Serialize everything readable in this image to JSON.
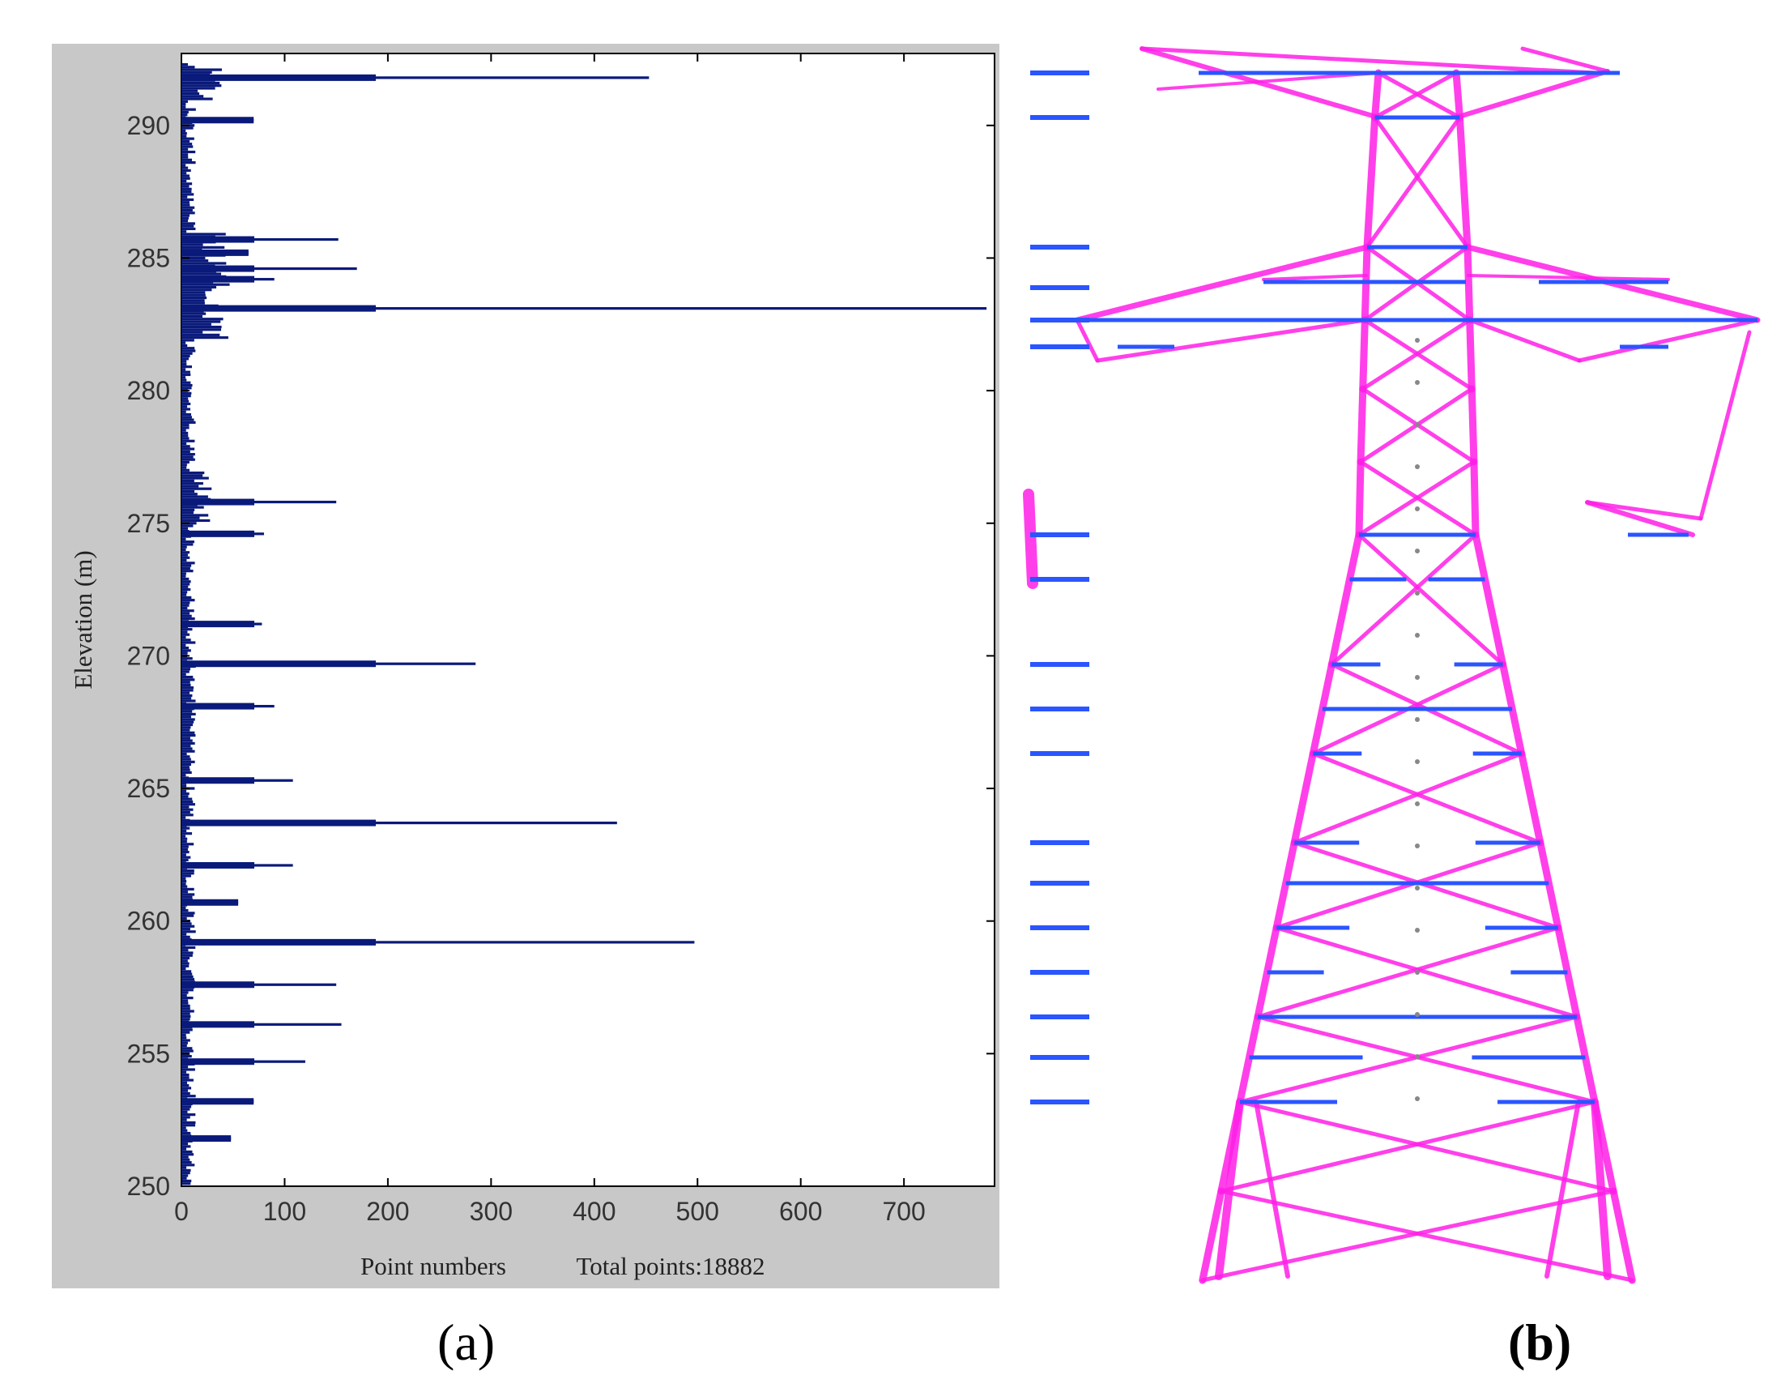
{
  "chart_data": {
    "type": "bar",
    "orientation": "horizontal",
    "ylabel": "Elevation (m)",
    "xlabel": "Point numbers",
    "annotation": "Total points:18882",
    "xlim": [
      0,
      780
    ],
    "ylim": [
      250,
      292.5
    ],
    "xticks": [
      0,
      100,
      200,
      300,
      400,
      500,
      600,
      700
    ],
    "yticks": [
      250,
      255,
      260,
      265,
      270,
      275,
      280,
      285,
      290
    ],
    "grid": false,
    "bar_color": "#0a1a7a",
    "peaks": [
      {
        "elevation": 291.8,
        "count": 453
      },
      {
        "elevation": 290.2,
        "count": 70
      },
      {
        "elevation": 285.7,
        "count": 152
      },
      {
        "elevation": 285.2,
        "count": 65
      },
      {
        "elevation": 284.6,
        "count": 170
      },
      {
        "elevation": 284.2,
        "count": 90
      },
      {
        "elevation": 283.1,
        "count": 780
      },
      {
        "elevation": 275.8,
        "count": 150
      },
      {
        "elevation": 274.6,
        "count": 80
      },
      {
        "elevation": 271.2,
        "count": 78
      },
      {
        "elevation": 269.7,
        "count": 285
      },
      {
        "elevation": 268.1,
        "count": 90
      },
      {
        "elevation": 265.3,
        "count": 108
      },
      {
        "elevation": 263.7,
        "count": 422
      },
      {
        "elevation": 262.1,
        "count": 108
      },
      {
        "elevation": 260.7,
        "count": 55
      },
      {
        "elevation": 259.2,
        "count": 497
      },
      {
        "elevation": 257.6,
        "count": 150
      },
      {
        "elevation": 256.1,
        "count": 155
      },
      {
        "elevation": 254.7,
        "count": 120
      },
      {
        "elevation": 253.2,
        "count": 70
      },
      {
        "elevation": 251.8,
        "count": 48
      }
    ]
  },
  "tower_figure": {
    "tower_color": "#ff1ee6",
    "marker_color": "#2a55ff",
    "level_marker_elevations": [
      291.8,
      290.2,
      285.7,
      284.2,
      283.1,
      282.2,
      274.6,
      273.1,
      269.7,
      268.1,
      266.4,
      263.1,
      261.6,
      259.9,
      258.2,
      256.6,
      254.9,
      253.3
    ]
  },
  "labels": {
    "panel_a": "(a)",
    "panel_b": "(b)"
  }
}
